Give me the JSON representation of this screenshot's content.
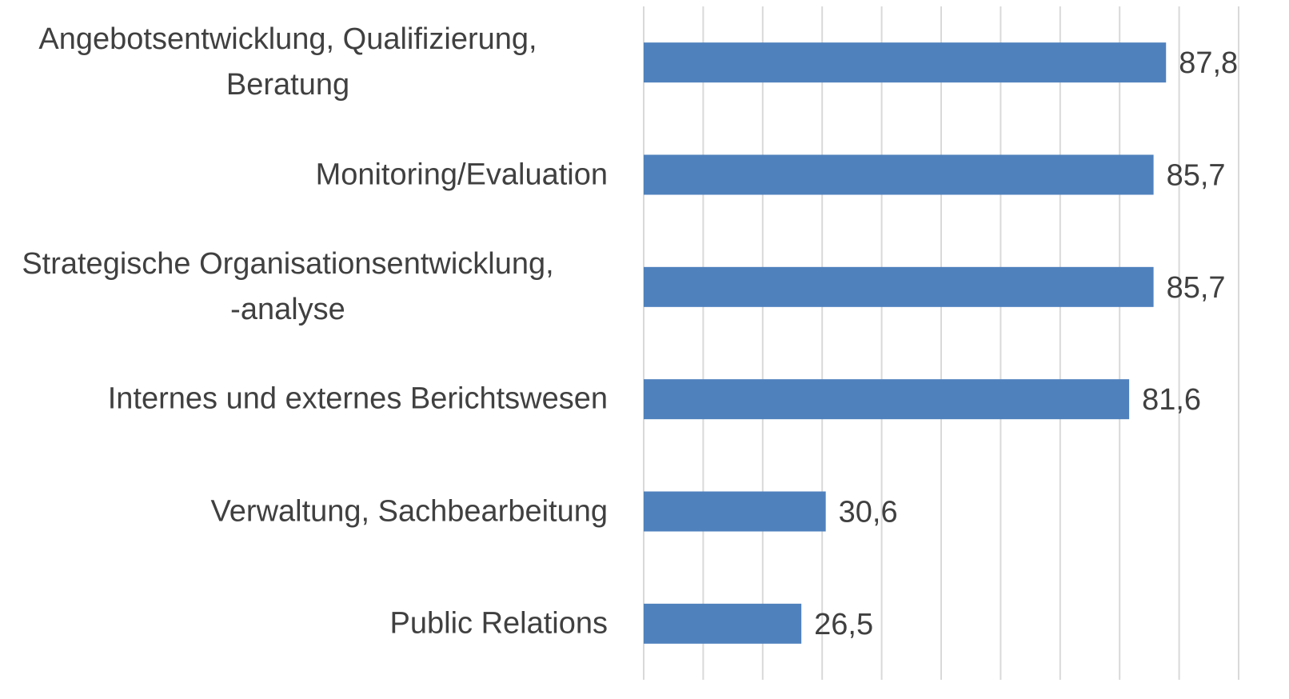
{
  "chart_data": {
    "type": "bar",
    "orientation": "horizontal",
    "categories": [
      "Angebotsentwicklung, Qualifizierung,\nBeratung",
      "Monitoring/Evaluation",
      "Strategische Organisationsentwicklung,\n-analyse",
      "Internes und externes Berichtswesen",
      "Verwaltung, Sachbearbeitung",
      "Public Relations"
    ],
    "values": [
      87.8,
      85.7,
      85.7,
      81.6,
      30.6,
      26.5
    ],
    "value_labels": [
      "87,8",
      "85,7",
      "85,7",
      "81,6",
      "30,6",
      "26,5"
    ],
    "color": "#4f81bd",
    "xlim": [
      0,
      100
    ],
    "xticks": [
      0,
      10,
      20,
      30,
      40,
      50,
      60,
      70,
      80,
      90,
      100
    ],
    "grid": true
  }
}
